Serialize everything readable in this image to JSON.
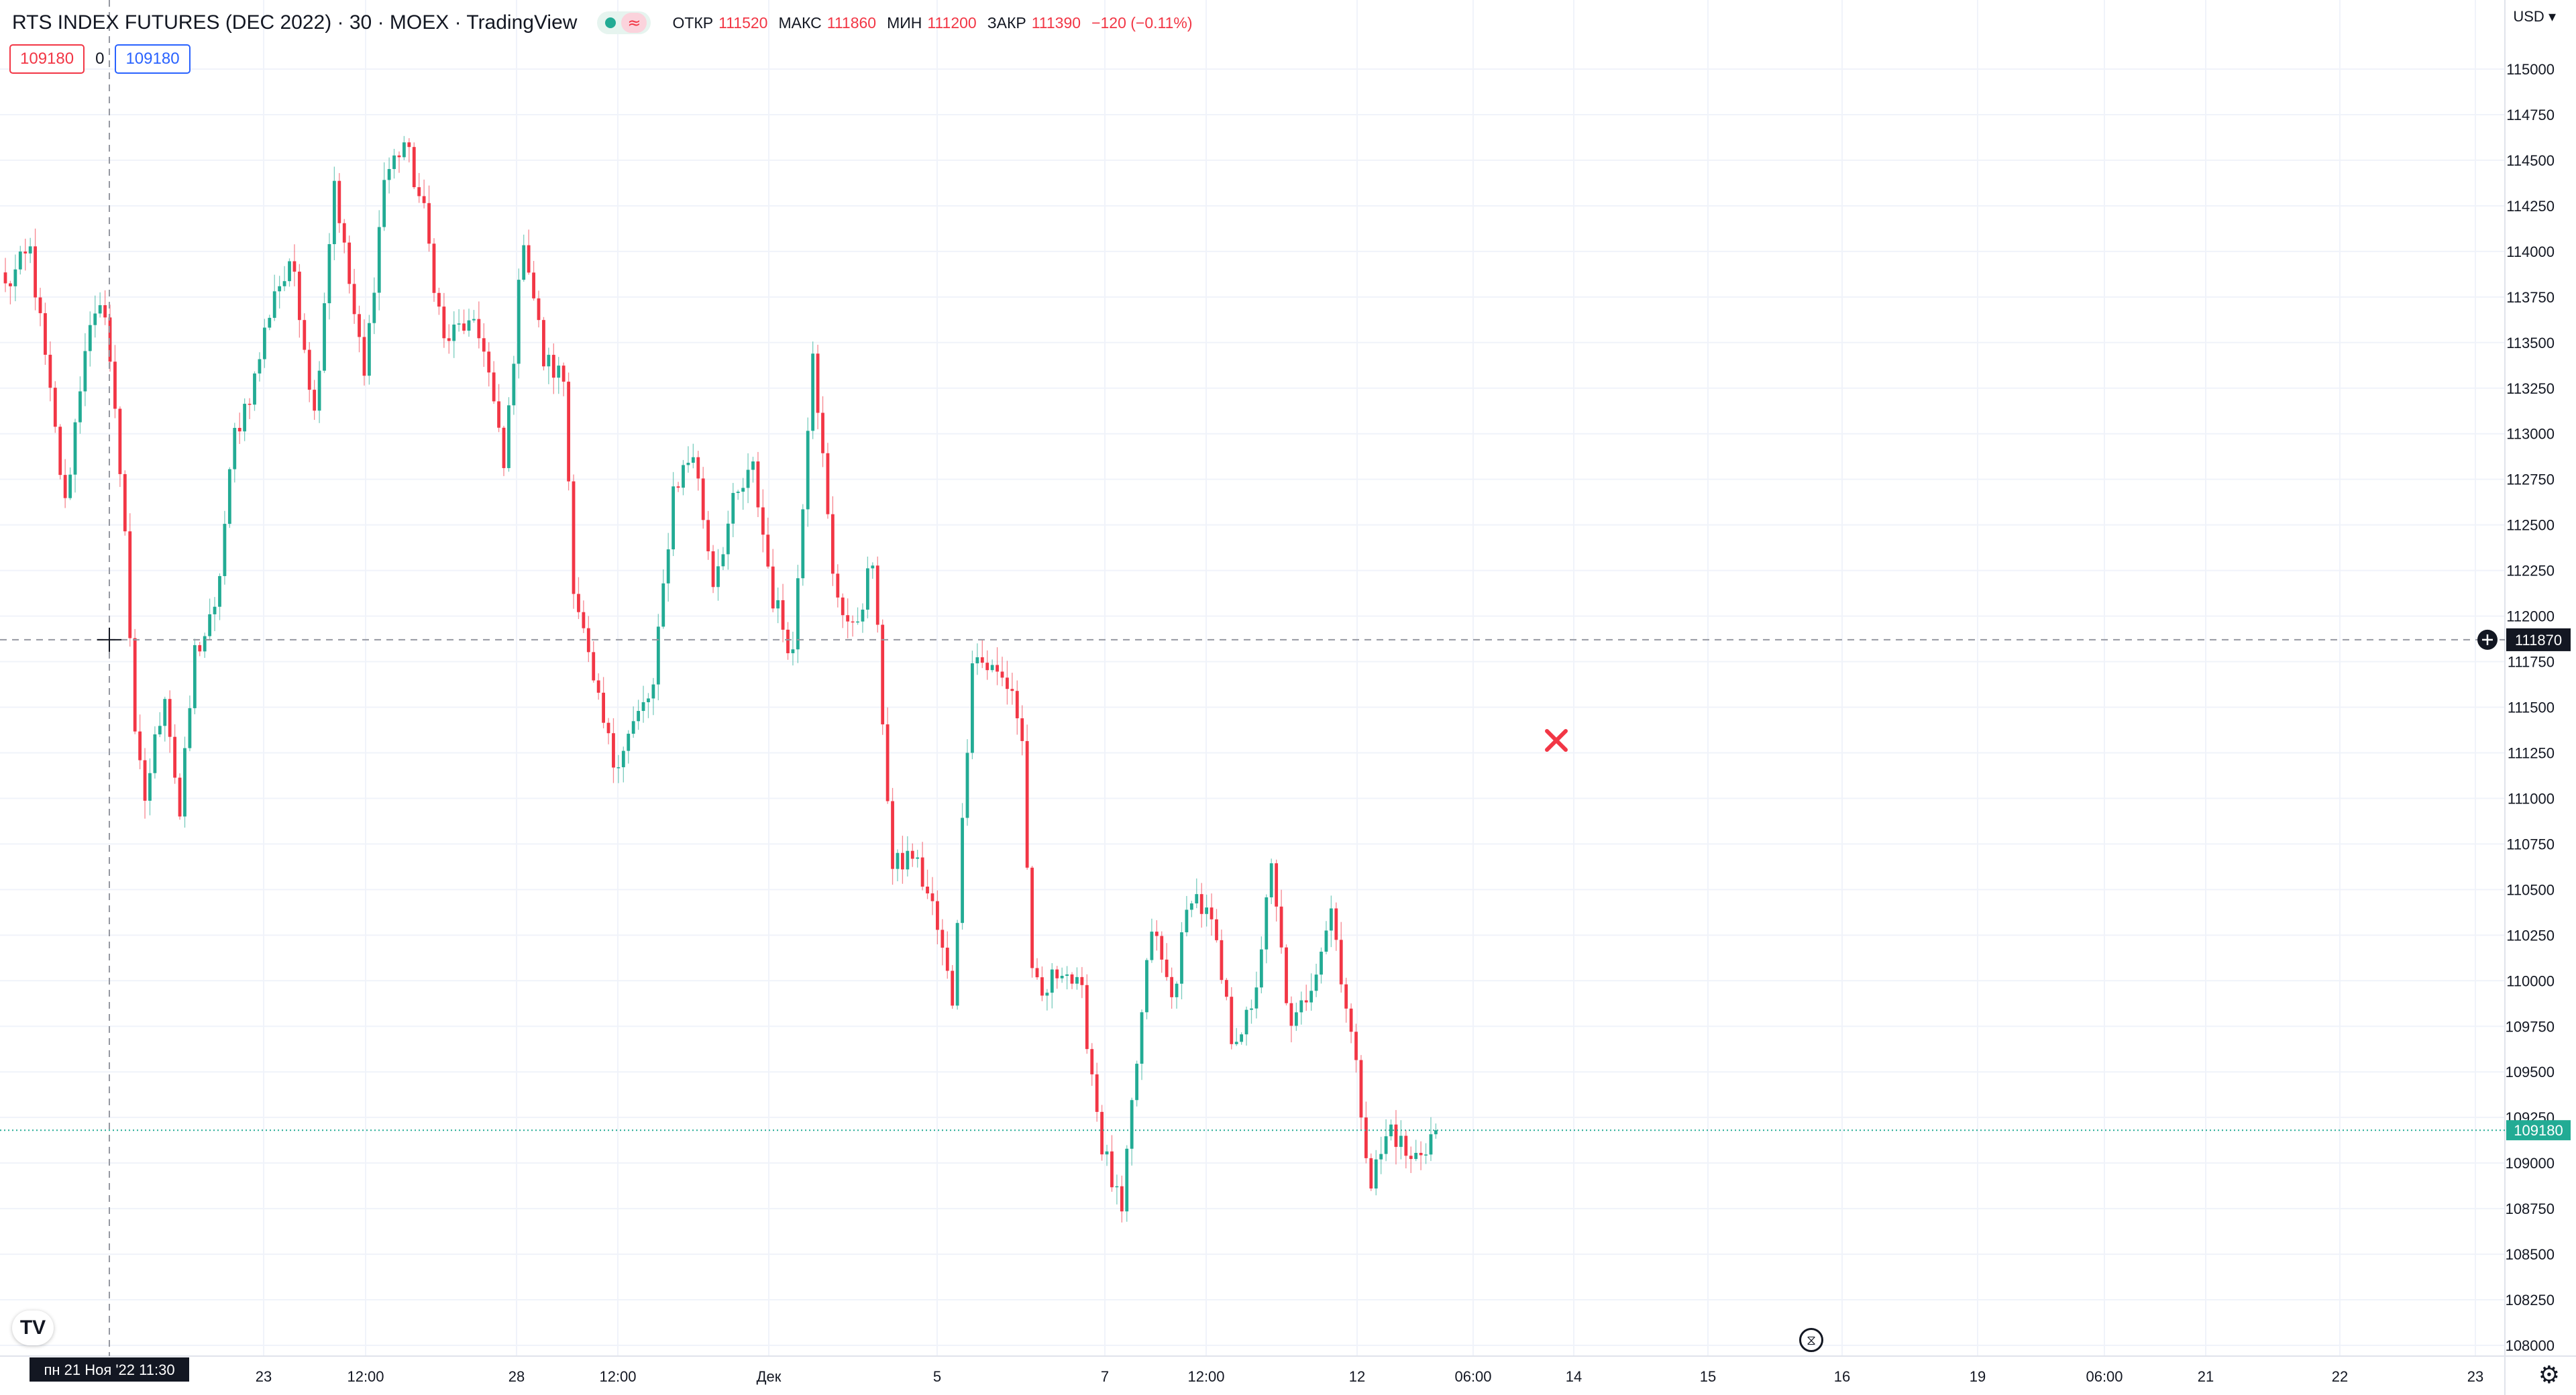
{
  "header": {
    "title": "RTS INDEX FUTURES (DEC 2022) · 30 · MOEX · TradingView",
    "delay_symbol": "≈",
    "ohlc": [
      {
        "label": "ОТКР",
        "value": "111520"
      },
      {
        "label": "МАКС",
        "value": "111860"
      },
      {
        "label": "МИН",
        "value": "111200"
      },
      {
        "label": "ЗАКР",
        "value": "111390"
      }
    ],
    "change": "−120 (−0.11%)"
  },
  "order_panel": {
    "sell_price": "109180",
    "quantity": "0",
    "buy_price": "109180"
  },
  "currency_label": "USD",
  "colors": {
    "up": "#22ab94",
    "down": "#f23645",
    "accent": "#2962ff",
    "grid": "#f0f3fa",
    "crosshair": "#9598a1"
  },
  "chart_data": {
    "type": "candlestick",
    "symbol": "RTS INDEX FUTURES (DEC 2022)",
    "interval": "30",
    "ylim": [
      108000,
      115000
    ],
    "y_ticks": [
      "115000",
      "114750",
      "114500",
      "114250",
      "114000",
      "113750",
      "113500",
      "113250",
      "113000",
      "112750",
      "112500",
      "112250",
      "112000",
      "111750",
      "111500",
      "111250",
      "111000",
      "110750",
      "110500",
      "110250",
      "110000",
      "109750",
      "109500",
      "109250",
      "109000",
      "108750",
      "108500",
      "108250",
      "108000"
    ],
    "x_ticks": [
      "23",
      "12:00",
      "28",
      "12:00",
      "Дек",
      "5",
      "7",
      "12:00",
      "12",
      "06:00",
      "14",
      "15",
      "16",
      "19",
      "06:00",
      "21",
      "22",
      "23"
    ],
    "crosshair": {
      "price": "111870",
      "time": "пн 21 Ноя '22   11:30"
    },
    "last_price": "109180",
    "grid": true,
    "candle_count": 288,
    "anchors": [
      [
        0,
        113800
      ],
      [
        5,
        114000
      ],
      [
        8,
        113400
      ],
      [
        12,
        112600
      ],
      [
        16,
        113500
      ],
      [
        20,
        113700
      ],
      [
        24,
        112500
      ],
      [
        26,
        111300
      ],
      [
        28,
        111000
      ],
      [
        32,
        111600
      ],
      [
        35,
        110900
      ],
      [
        38,
        111800
      ],
      [
        42,
        112000
      ],
      [
        46,
        113000
      ],
      [
        50,
        113300
      ],
      [
        54,
        113800
      ],
      [
        58,
        113900
      ],
      [
        62,
        113100
      ],
      [
        66,
        114400
      ],
      [
        68,
        114000
      ],
      [
        72,
        113300
      ],
      [
        76,
        114400
      ],
      [
        80,
        114600
      ],
      [
        84,
        114200
      ],
      [
        88,
        113500
      ],
      [
        92,
        113600
      ],
      [
        96,
        113500
      ],
      [
        100,
        112800
      ],
      [
        104,
        114100
      ],
      [
        108,
        113400
      ],
      [
        112,
        113300
      ],
      [
        114,
        112200
      ],
      [
        118,
        111600
      ],
      [
        122,
        111200
      ],
      [
        126,
        111400
      ],
      [
        130,
        111600
      ],
      [
        134,
        112700
      ],
      [
        138,
        112900
      ],
      [
        142,
        112200
      ],
      [
        146,
        112600
      ],
      [
        150,
        112800
      ],
      [
        154,
        112100
      ],
      [
        158,
        111800
      ],
      [
        162,
        113500
      ],
      [
        166,
        112200
      ],
      [
        170,
        111900
      ],
      [
        174,
        112300
      ],
      [
        178,
        110600
      ],
      [
        182,
        110700
      ],
      [
        186,
        110400
      ],
      [
        190,
        109900
      ],
      [
        194,
        111800
      ],
      [
        198,
        111700
      ],
      [
        202,
        111600
      ],
      [
        204,
        111300
      ],
      [
        206,
        110000
      ],
      [
        208,
        109900
      ],
      [
        212,
        110100
      ],
      [
        216,
        109900
      ],
      [
        220,
        109100
      ],
      [
        224,
        108700
      ],
      [
        226,
        109300
      ],
      [
        230,
        110300
      ],
      [
        234,
        109900
      ],
      [
        238,
        110500
      ],
      [
        242,
        110300
      ],
      [
        246,
        109700
      ],
      [
        250,
        109800
      ],
      [
        254,
        110600
      ],
      [
        258,
        109700
      ],
      [
        262,
        110000
      ],
      [
        266,
        110400
      ],
      [
        270,
        109700
      ],
      [
        274,
        108900
      ],
      [
        278,
        109200
      ],
      [
        282,
        109000
      ],
      [
        287,
        109180
      ]
    ]
  }
}
